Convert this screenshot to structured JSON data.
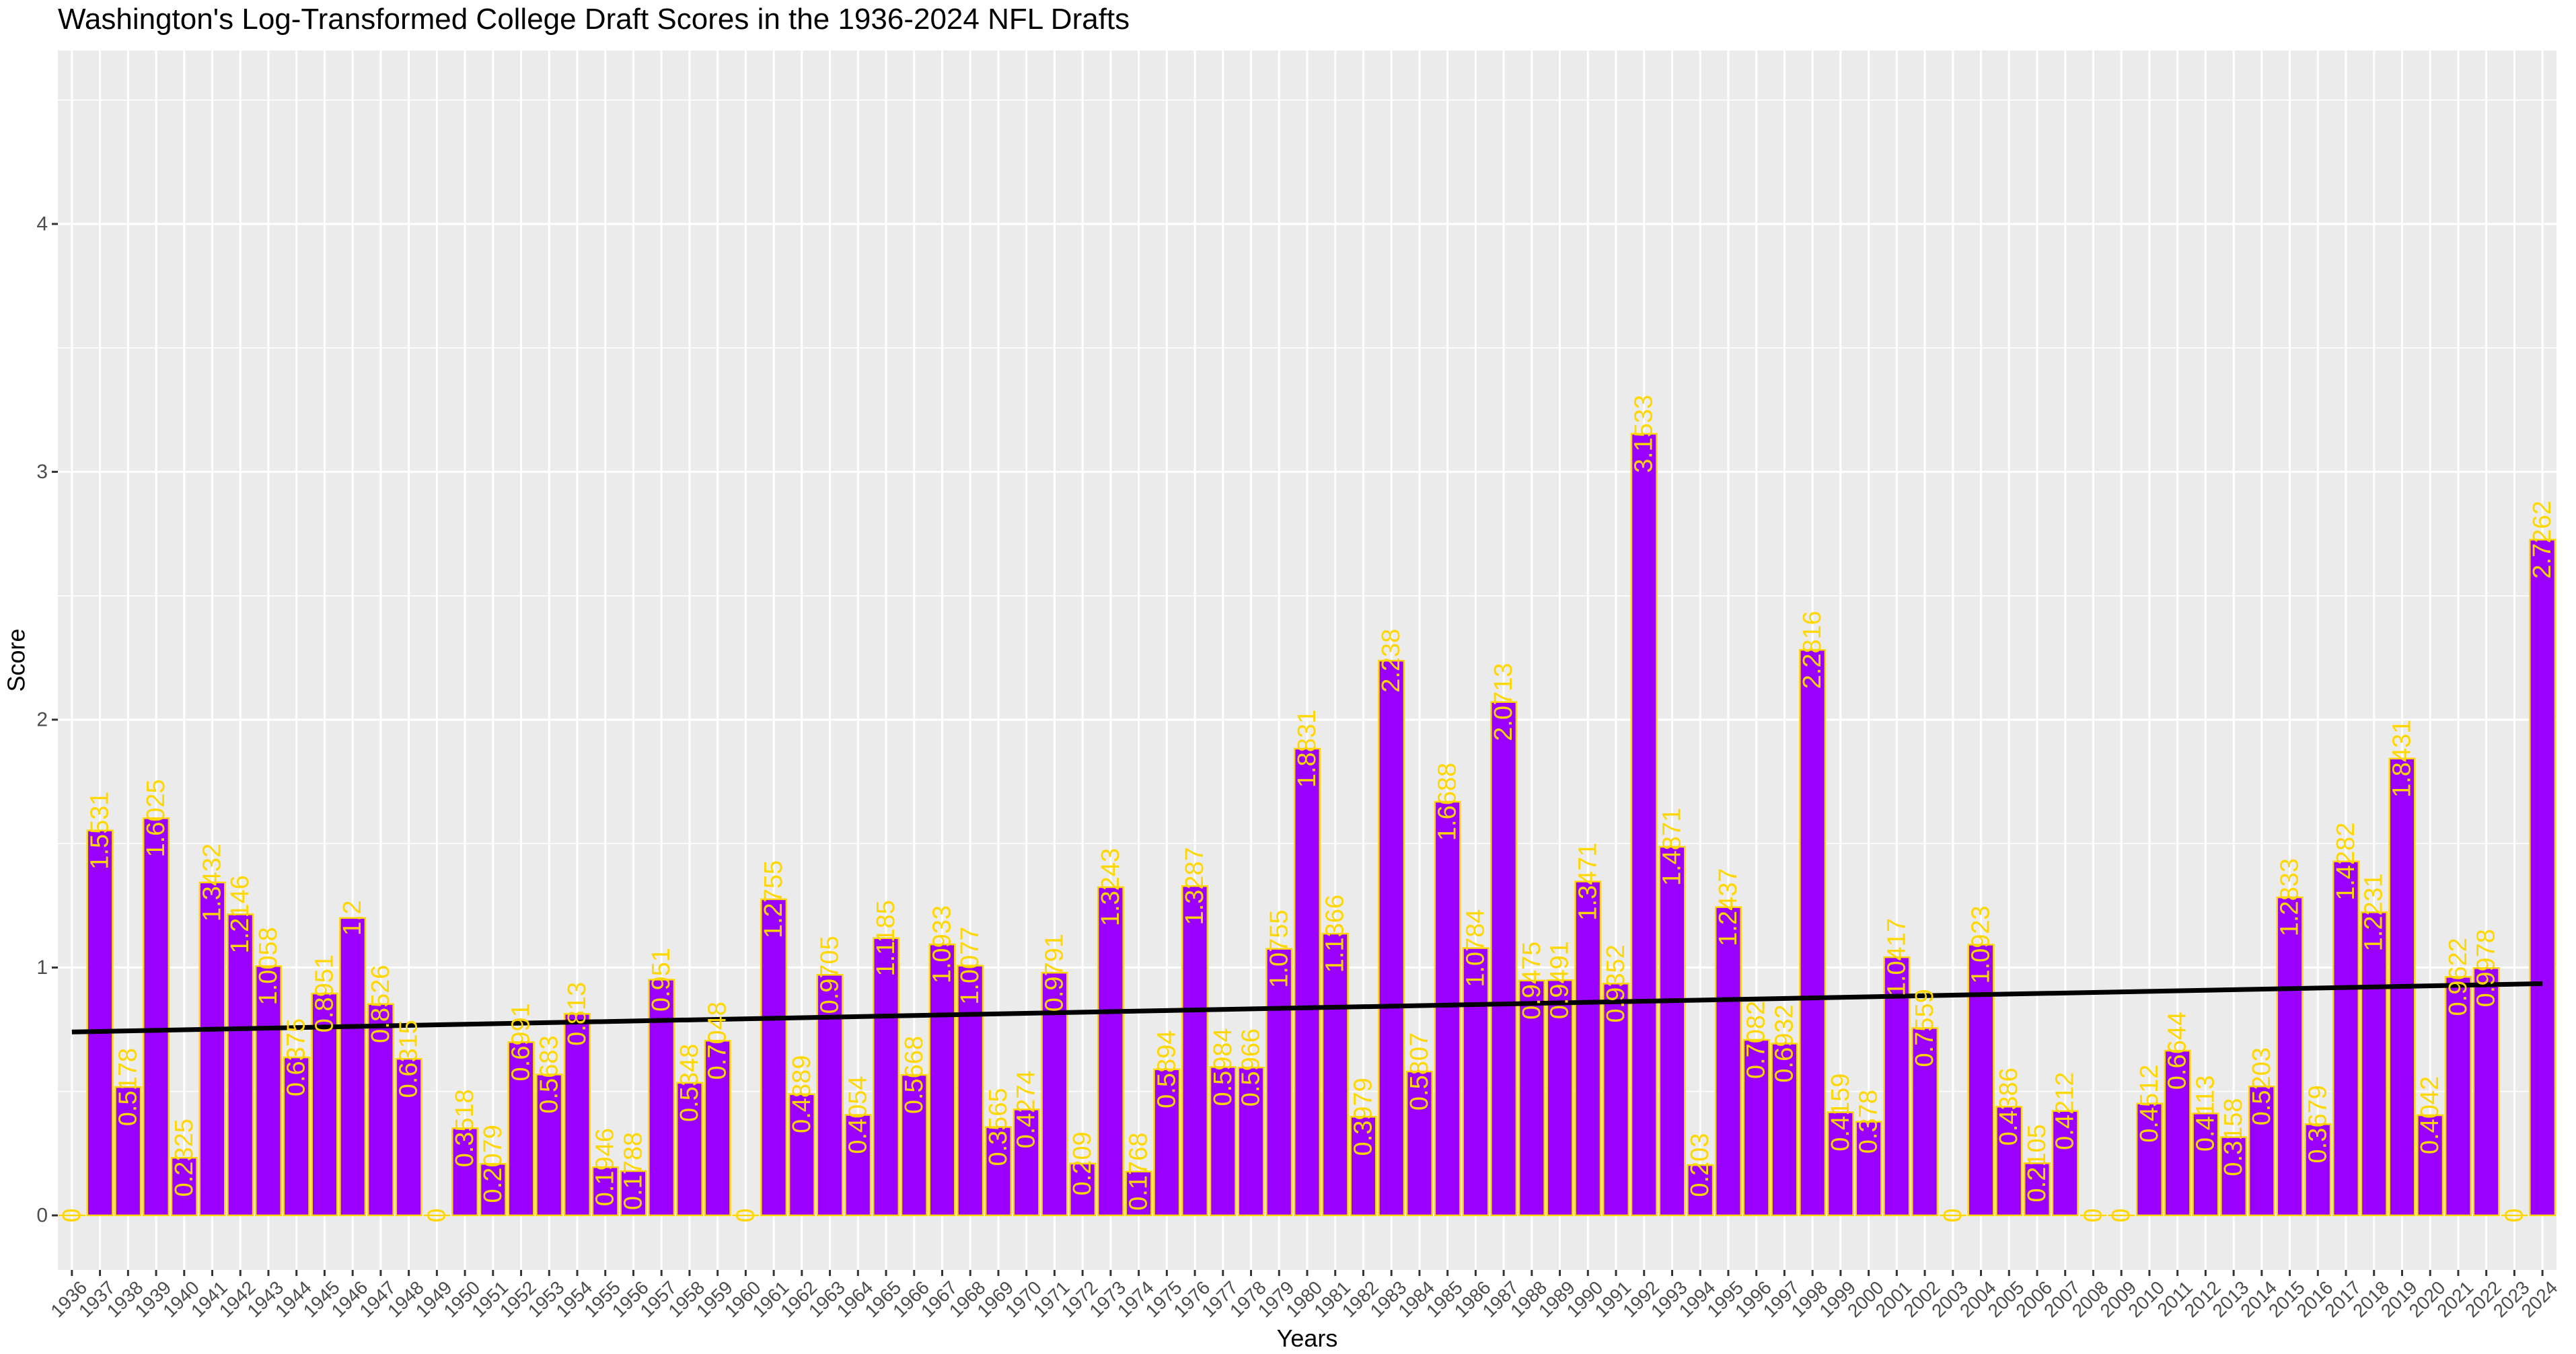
{
  "chart_data": {
    "type": "bar",
    "title": "Washington's Log-Transformed College Draft Scores in the 1936-2024 NFL Drafts",
    "xlabel": "Years",
    "ylabel": "Score",
    "ylim": [
      -0.22,
      4.7
    ],
    "yticks": [
      0,
      1,
      2,
      3,
      4
    ],
    "grid": true,
    "legend": "none",
    "colors": {
      "bar_fill": "#9900FF",
      "bar_outline": "#FFD700",
      "label": "#FFD700",
      "trend": "#000000",
      "panel": "#EBEBEB",
      "grid": "#FFFFFF"
    },
    "categories": [
      "1936",
      "1937",
      "1938",
      "1939",
      "1940",
      "1941",
      "1942",
      "1943",
      "1944",
      "1945",
      "1946",
      "1947",
      "1948",
      "1949",
      "1950",
      "1951",
      "1952",
      "1953",
      "1954",
      "1955",
      "1956",
      "1957",
      "1958",
      "1959",
      "1960",
      "1961",
      "1962",
      "1963",
      "1964",
      "1965",
      "1966",
      "1967",
      "1968",
      "1969",
      "1970",
      "1971",
      "1972",
      "1973",
      "1974",
      "1975",
      "1976",
      "1977",
      "1978",
      "1979",
      "1980",
      "1981",
      "1982",
      "1983",
      "1984",
      "1985",
      "1986",
      "1987",
      "1988",
      "1989",
      "1990",
      "1991",
      "1992",
      "1993",
      "1994",
      "1995",
      "1996",
      "1997",
      "1998",
      "1999",
      "2000",
      "2001",
      "2002",
      "2003",
      "2004",
      "2005",
      "2006",
      "2007",
      "2008",
      "2009",
      "2010",
      "2011",
      "2012",
      "2013",
      "2014",
      "2015",
      "2016",
      "2017",
      "2018",
      "2019",
      "2020",
      "2021",
      "2022",
      "2023",
      "2024"
    ],
    "values": [
      0,
      1.5531,
      0.5178,
      1.6025,
      0.2325,
      1.3432,
      1.2146,
      1.0058,
      0.6375,
      0.8951,
      1.2,
      0.8526,
      0.6315,
      0,
      0.3518,
      0.2079,
      0.6991,
      0.5683,
      0.813,
      0.1946,
      0.1788,
      0.951,
      0.5348,
      0.7048,
      0,
      1.2755,
      0.4889,
      0.9705,
      0.4054,
      1.1185,
      0.5668,
      1.0933,
      1.0077,
      0.3565,
      0.4274,
      0.9791,
      0.209,
      1.3243,
      0.1768,
      0.5894,
      1.3287,
      0.5984,
      0.5966,
      1.0755,
      1.8831,
      1.1366,
      0.3979,
      2.238,
      0.5807,
      1.6688,
      1.0784,
      2.0713,
      0.9475,
      0.9491,
      1.3471,
      0.9352,
      3.1533,
      1.4871,
      0.203,
      1.2437,
      0.7082,
      0.6932,
      2.2816,
      0.4159,
      0.378,
      1.0417,
      0.7559,
      0,
      1.0923,
      0.4386,
      0.2105,
      0.4212,
      0,
      0,
      0.4512,
      0.6644,
      0.4113,
      0.3158,
      0.5203,
      1.2833,
      0.3679,
      1.4282,
      1.2231,
      1.8431,
      0.4042,
      0.9622,
      0.9978,
      0,
      2.7262
    ],
    "data_labels": [
      "0",
      "1.5531",
      "0.5178",
      "1.6025",
      "0.2325",
      "1.3432",
      "1.2146",
      "1.0058",
      "0.6375",
      "0.8951",
      "1.2",
      "0.8526",
      "0.6315",
      "0",
      "0.3518",
      "0.2079",
      "0.6991",
      "0.5683",
      "0.813",
      "0.1946",
      "0.1788",
      "0.951",
      "0.5348",
      "0.7048",
      "0",
      "1.2755",
      "0.4889",
      "0.9705",
      "0.4054",
      "1.1185",
      "0.5668",
      "1.0933",
      "1.0077",
      "0.3565",
      "0.4274",
      "0.9791",
      "0.209",
      "1.3243",
      "0.1768",
      "0.5894",
      "1.3287",
      "0.5984",
      "0.5966",
      "1.0755",
      "1.8831",
      "1.1366",
      "0.3979",
      "2.238",
      "0.5807",
      "1.6688",
      "1.0784",
      "2.0713",
      "0.9475",
      "0.9491",
      "1.3471",
      "0.9352",
      "3.1533",
      "1.4871",
      "0.203",
      "1.2437",
      "0.7082",
      "0.6932",
      "2.2816",
      "0.4159",
      "0.378",
      "1.0417",
      "0.7559",
      "0",
      "1.0923",
      "0.4386",
      "0.2105",
      "0.4212",
      "0",
      "0",
      "0.4512",
      "0.6644",
      "0.4113",
      "0.3158",
      "0.5203",
      "1.2833",
      "0.3679",
      "1.4282",
      "1.2231",
      "1.8431",
      "0.4042",
      "0.9622",
      "0.9978",
      "0",
      "2.7262"
    ],
    "trend_line": {
      "type": "linear",
      "start": 0.74,
      "end": 0.935
    }
  }
}
